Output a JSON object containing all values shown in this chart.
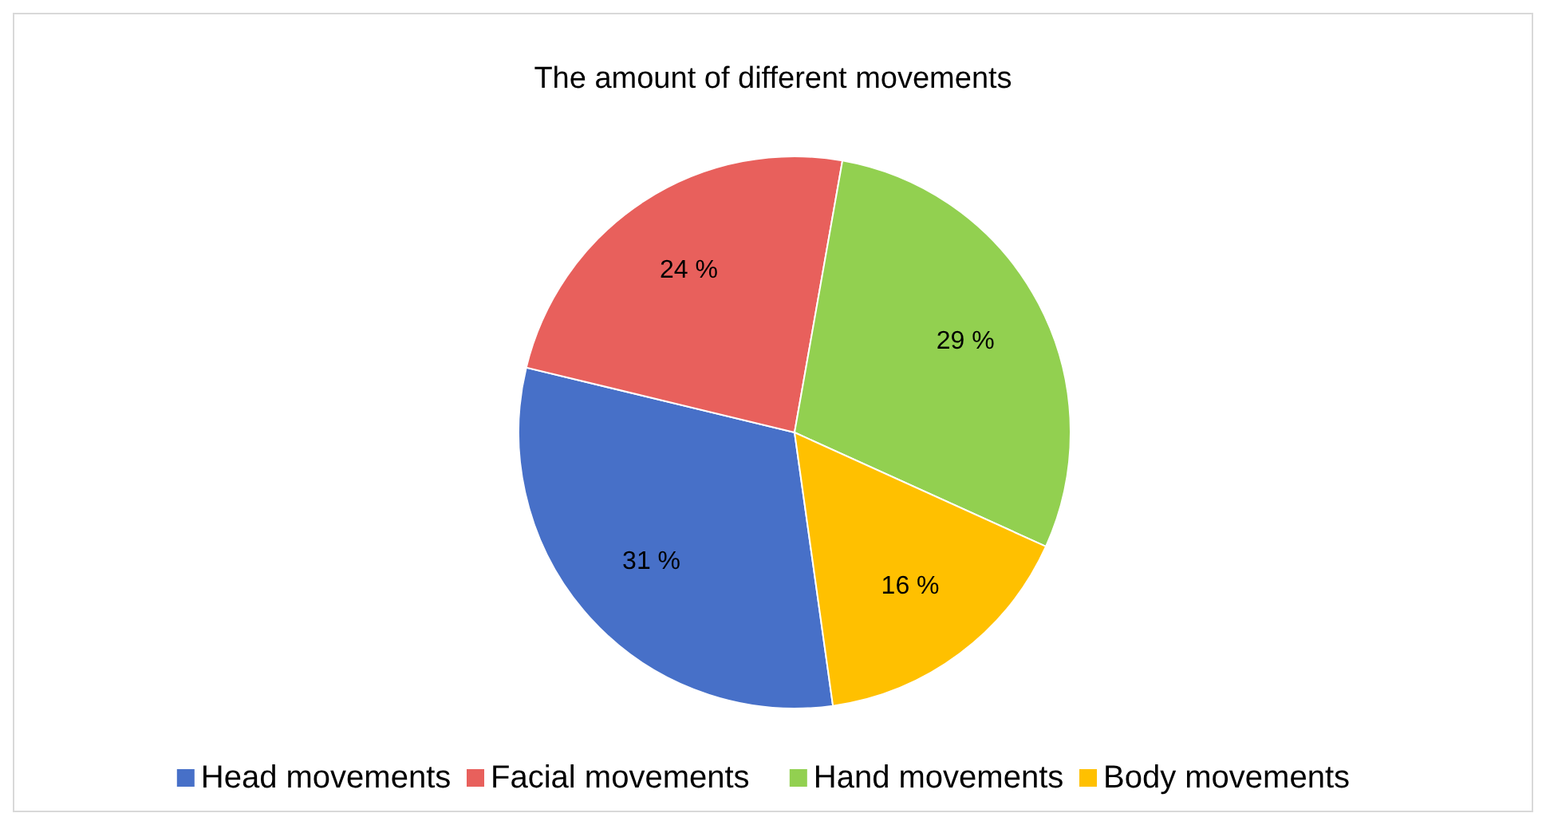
{
  "chart_data": {
    "type": "pie",
    "title": "The amount of different movements",
    "categories": [
      "Head movements",
      "Facial movements",
      "Hand movements",
      "Body movements"
    ],
    "values": [
      31,
      24,
      29,
      16
    ],
    "colors": [
      "#4770c8",
      "#e8605c",
      "#92d050",
      "#ffc000"
    ],
    "value_labels": [
      "31 %",
      "24 %",
      "29 %",
      "16 %"
    ],
    "legend": "bottom"
  }
}
